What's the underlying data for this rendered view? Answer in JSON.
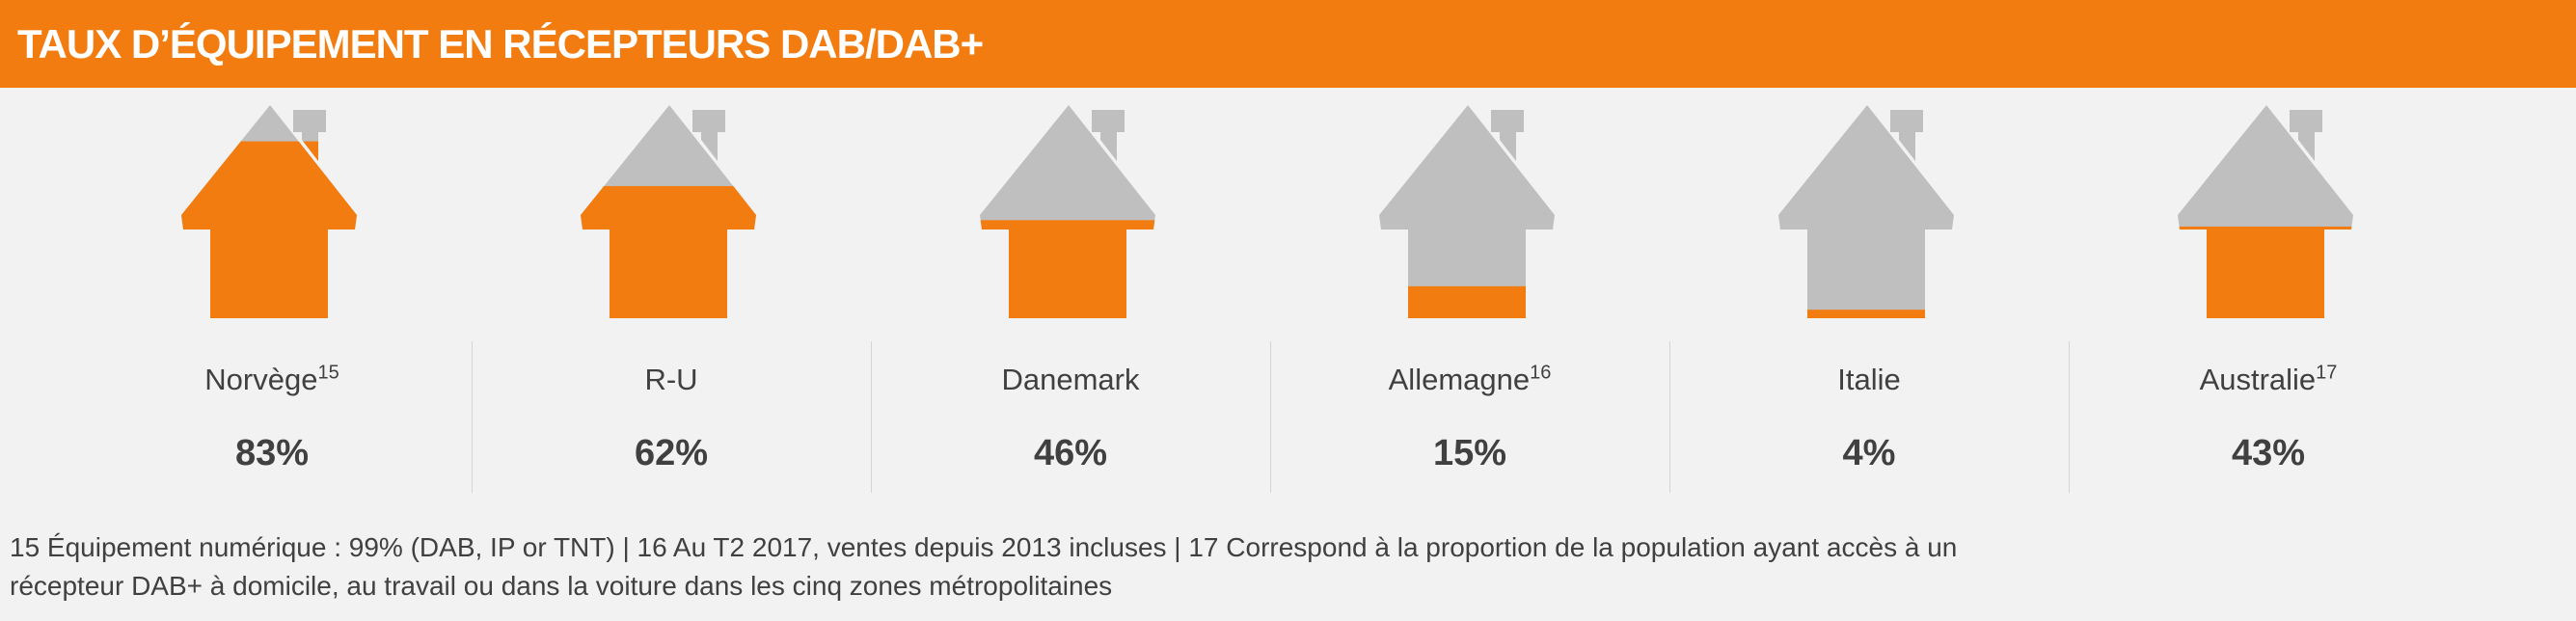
{
  "title": "TAUX D’ÉQUIPEMENT EN RÉCEPTEURS DAB/DAB+",
  "colors": {
    "accent": "#f27c0f",
    "empty": "#bfbfbf",
    "background": "#f2f2f2",
    "text": "#404040"
  },
  "chart_data": {
    "type": "bar",
    "title": "TAUX D’ÉQUIPEMENT EN RÉCEPTEURS DAB/DAB+",
    "categories": [
      "Norvège",
      "R-U",
      "Danemark",
      "Allemagne",
      "Italie",
      "Australie"
    ],
    "values": [
      83,
      62,
      46,
      15,
      4,
      43
    ],
    "value_labels": [
      "83%",
      "62%",
      "46%",
      "15%",
      "4%",
      "43%"
    ],
    "footnote_refs": [
      "15",
      "",
      "",
      "16",
      "",
      "17"
    ],
    "unit": "%",
    "ylim": [
      0,
      100
    ]
  },
  "footnote": {
    "line1": "15 Équipement numérique : 99% (DAB, IP or TNT)  | 16 Au T2 2017, ventes depuis 2013 incluses | 17 Correspond à la proportion de la population ayant accès à un",
    "line2": "récepteur DAB+ à domicile, au travail ou dans la voiture dans les cinq zones métropolitaines"
  }
}
